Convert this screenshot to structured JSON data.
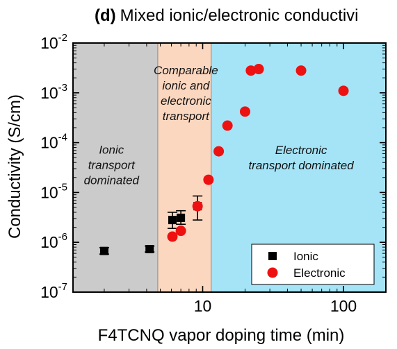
{
  "panel": {
    "label": "(d)",
    "title": "Mixed ionic/electronic conductivi"
  },
  "chart_data": {
    "type": "scatter",
    "title": "Mixed ionic/electronic conductivi",
    "xlabel": "F4TCNQ vapor doping time (min)",
    "ylabel": "Conductivity (S/cm)",
    "xscale": "log",
    "yscale": "log",
    "xlim": [
      1.2,
      200
    ],
    "ylim": [
      1e-07,
      0.01
    ],
    "x_ticks": [
      {
        "value": 10,
        "label": "10"
      },
      {
        "value": 100,
        "label": "100"
      }
    ],
    "y_ticks": [
      {
        "value": 1e-07,
        "base": "10",
        "exp": "-7"
      },
      {
        "value": 1e-06,
        "base": "10",
        "exp": "-6"
      },
      {
        "value": 1e-05,
        "base": "10",
        "exp": "-5"
      },
      {
        "value": 0.0001,
        "base": "10",
        "exp": "-4"
      },
      {
        "value": 0.001,
        "base": "10",
        "exp": "-3"
      },
      {
        "value": 0.01,
        "base": "10",
        "exp": "-2"
      }
    ],
    "regions": [
      {
        "x_from": 1.2,
        "x_to": 4.8,
        "color": "#cbcbcb",
        "label_lines": [
          "Ionic",
          "transport",
          "dominated"
        ],
        "label_at": [
          2.25,
          3.6e-05
        ]
      },
      {
        "x_from": 4.8,
        "x_to": 11.5,
        "color": "#fbd7c0",
        "label_lines": [
          "Comparable",
          "ionic and",
          "electronic",
          "transport"
        ],
        "label_at": [
          7.6,
          0.001
        ]
      },
      {
        "x_from": 11.5,
        "x_to": 200,
        "color": "#a5e4f7",
        "label_lines": [
          "Electronic",
          "transport dominated"
        ],
        "label_at": [
          50,
          5e-05
        ]
      }
    ],
    "series": [
      {
        "name": "Ionic",
        "marker": "square",
        "color": "#000000",
        "points": [
          {
            "x": 2.0,
            "y": 6.7e-07,
            "yerr": [
              5.8e-07,
              7.8e-07
            ]
          },
          {
            "x": 4.2,
            "y": 7.3e-07,
            "yerr": [
              6.4e-07,
              8.4e-07
            ]
          },
          {
            "x": 6.1,
            "y": 2.8e-06,
            "yerr": [
              1.9e-06,
              4e-06
            ]
          },
          {
            "x": 7.0,
            "y": 3.1e-06,
            "yerr": [
              2.3e-06,
              4.3e-06
            ]
          },
          {
            "x": 9.2,
            "y": 5.3e-06,
            "yerr": [
              2.8e-06,
              8.5e-06
            ]
          }
        ]
      },
      {
        "name": "Electronic",
        "marker": "circle",
        "color": "#ee1111",
        "points": [
          {
            "x": 6.1,
            "y": 1.3e-06
          },
          {
            "x": 7.0,
            "y": 1.7e-06
          },
          {
            "x": 9.2,
            "y": 5.3e-06
          },
          {
            "x": 11.0,
            "y": 1.8e-05
          },
          {
            "x": 13.0,
            "y": 6.7e-05
          },
          {
            "x": 15.0,
            "y": 0.00022
          },
          {
            "x": 20.0,
            "y": 0.00042
          },
          {
            "x": 22.0,
            "y": 0.0028
          },
          {
            "x": 25.0,
            "y": 0.003
          },
          {
            "x": 50.0,
            "y": 0.0028
          },
          {
            "x": 100.0,
            "y": 0.0011
          }
        ]
      }
    ],
    "legend": {
      "position": "bottom-right",
      "entries": [
        {
          "label": "Ionic",
          "marker": "square",
          "color": "#000000"
        },
        {
          "label": "Electronic",
          "marker": "circle",
          "color": "#ee1111"
        }
      ]
    }
  }
}
